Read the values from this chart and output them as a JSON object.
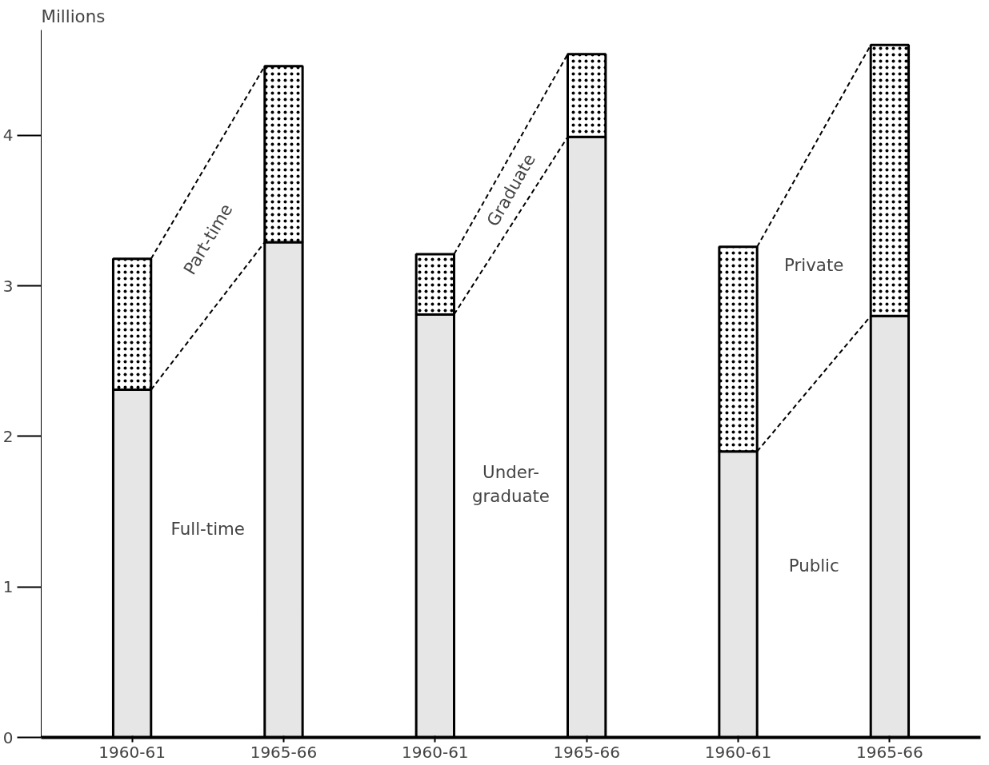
{
  "chart_data": {
    "type": "bar",
    "stacked": true,
    "ylabel": "Millions",
    "categories": [
      "1960-61",
      "1965-66",
      "1960-61",
      "1965-66",
      "1960-61",
      "1965-66"
    ],
    "series": [
      {
        "color": "#e6e6e6",
        "values": [
          2.31,
          3.29,
          2.81,
          3.99,
          1.9,
          2.8
        ]
      },
      {
        "color": "#ffffff",
        "values": [
          0.87,
          1.17,
          0.4,
          0.55,
          1.36,
          1.8
        ]
      }
    ],
    "ylim": [
      0,
      4.7
    ],
    "yticks": [
      0,
      1,
      2,
      3,
      4
    ],
    "grid": false,
    "annotations": [
      "Full-time",
      "Part-time",
      "Under-\ngraduate",
      "Graduate",
      "Public",
      "Private"
    ]
  }
}
